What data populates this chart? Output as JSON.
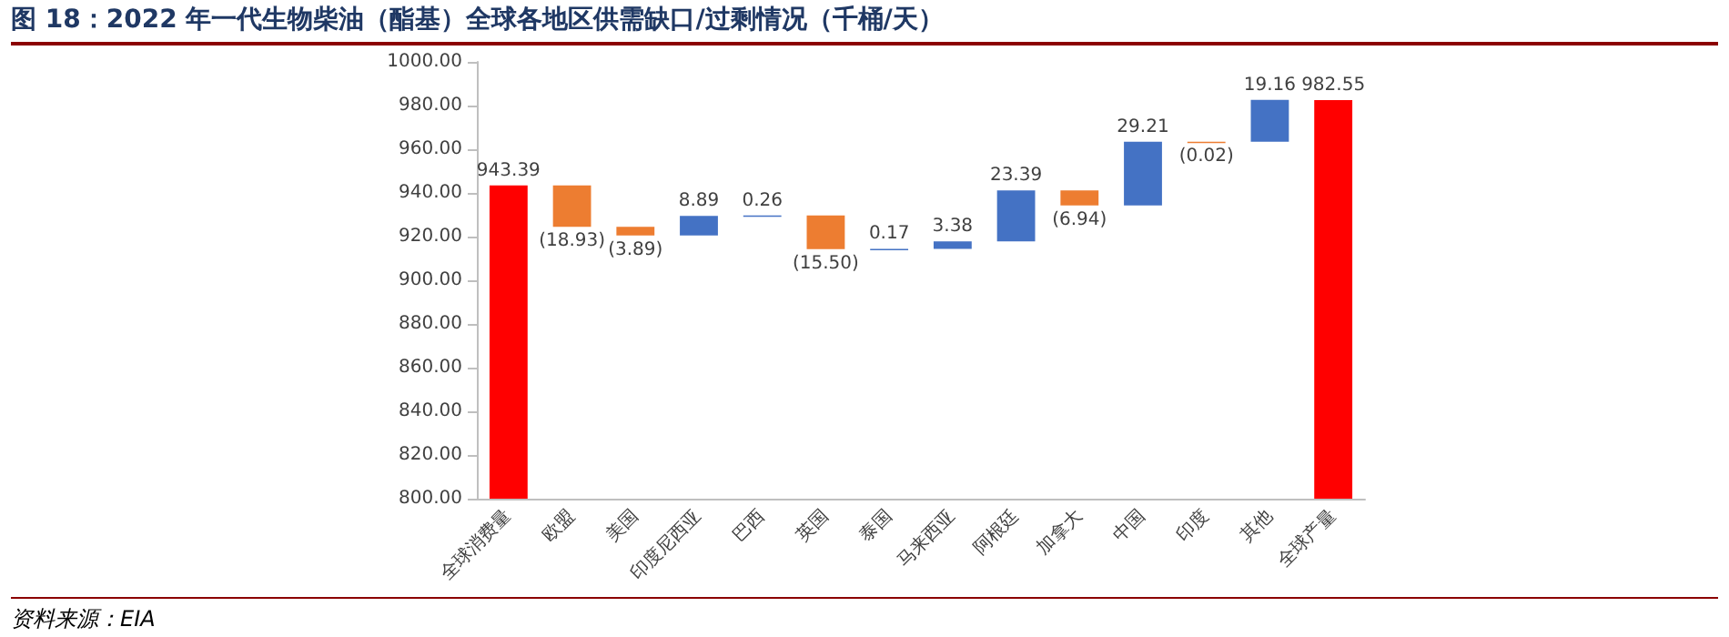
{
  "chart_data": {
    "type": "bar",
    "title": "图 18：2022 年一代生物柴油（酯基）全球各地区供需缺口/过剩情况（千桶/天）",
    "annotations": [
      "资料来源：EIA"
    ],
    "categories": [
      "全球消费量",
      "欧盟",
      "美国",
      "印度尼西亚",
      "巴西",
      "英国",
      "泰国",
      "马来西亚",
      "阿根廷",
      "加拿大",
      "中国",
      "印度",
      "其他",
      "全球产量"
    ],
    "values": [
      943.39,
      -18.93,
      -3.89,
      8.89,
      0.26,
      -15.5,
      0.17,
      3.38,
      23.39,
      -6.94,
      29.21,
      -0.02,
      19.16,
      982.55
    ],
    "base": [
      0,
      943.39,
      924.46,
      920.57,
      929.46,
      929.72,
      914.22,
      914.39,
      917.77,
      941.16,
      934.22,
      963.43,
      963.41,
      0
    ],
    "value_labels": [
      "943.39",
      "(18.93)",
      "(3.89)",
      "8.89",
      "0.26",
      "(15.50)",
      "0.17",
      "3.38",
      "23.39",
      "(6.94)",
      "29.21",
      "(0.02)",
      "19.16",
      "982.55"
    ],
    "colors": [
      "#ff0000",
      "#ed7d31",
      "#ed7d31",
      "#4472c4",
      "#4472c4",
      "#ed7d31",
      "#4472c4",
      "#4472c4",
      "#4472c4",
      "#ed7d31",
      "#4472c4",
      "#ed7d31",
      "#4472c4",
      "#ff0000"
    ],
    "ylim": [
      800,
      1000
    ],
    "yticks": [
      {
        "value": 800,
        "label": "800.00"
      },
      {
        "value": 820,
        "label": "820.00"
      },
      {
        "value": 840,
        "label": "840.00"
      },
      {
        "value": 860,
        "label": "860.00"
      },
      {
        "value": 880,
        "label": "880.00"
      },
      {
        "value": 900,
        "label": "900.00"
      },
      {
        "value": 920,
        "label": "920.00"
      },
      {
        "value": 940,
        "label": "940.00"
      },
      {
        "value": 960,
        "label": "960.00"
      },
      {
        "value": 980,
        "label": "980.00"
      },
      {
        "value": 1000,
        "label": "1000.00"
      }
    ],
    "grid": false
  }
}
